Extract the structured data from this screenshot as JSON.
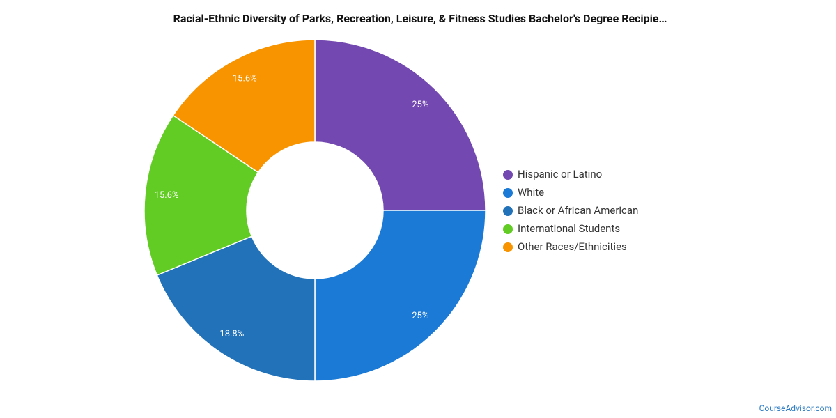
{
  "chart_data": {
    "type": "pie",
    "title": "Racial-Ethnic Diversity of Parks, Recreation, Leisure, & Fitness Studies Bachelor's Degree Recipie…",
    "categories": [
      "Hispanic or Latino",
      "White",
      "Black or African American",
      "International Students",
      "Other Races/Ethnicities"
    ],
    "values": [
      25,
      25,
      18.8,
      15.6,
      15.6
    ],
    "value_labels": [
      "25%",
      "25%",
      "18.8%",
      "15.6%",
      "15.6%"
    ],
    "colors": [
      "#7348b0",
      "#1b7ad6",
      "#2272b9",
      "#62cc25",
      "#f79400"
    ],
    "legend": "right",
    "source": "CourseAdvisor.com"
  }
}
